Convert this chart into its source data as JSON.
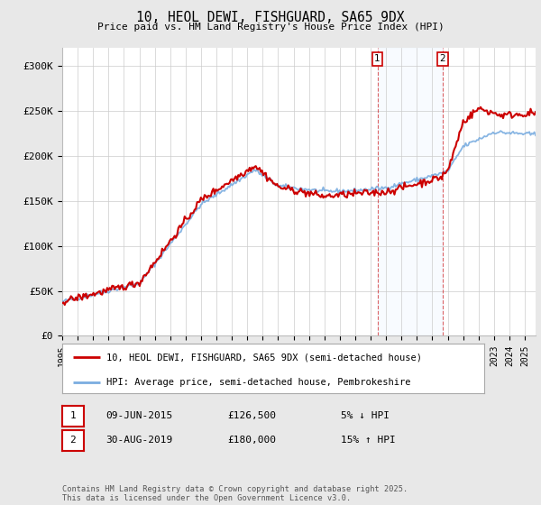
{
  "title": "10, HEOL DEWI, FISHGUARD, SA65 9DX",
  "subtitle": "Price paid vs. HM Land Registry's House Price Index (HPI)",
  "ylabel_ticks": [
    "£0",
    "£50K",
    "£100K",
    "£150K",
    "£200K",
    "£250K",
    "£300K"
  ],
  "ytick_values": [
    0,
    50000,
    100000,
    150000,
    200000,
    250000,
    300000
  ],
  "ylim": [
    0,
    320000
  ],
  "xlim_start": 1995.0,
  "xlim_end": 2025.7,
  "line1_color": "#cc0000",
  "line2_color": "#7aade0",
  "bg_color": "#e8e8e8",
  "plot_bg_color": "#ffffff",
  "grid_color": "#cccccc",
  "marker1_x": 2015.44,
  "marker2_x": 2019.66,
  "legend_line1": "10, HEOL DEWI, FISHGUARD, SA65 9DX (semi-detached house)",
  "legend_line2": "HPI: Average price, semi-detached house, Pembrokeshire",
  "note1_label": "1",
  "note1_date": "09-JUN-2015",
  "note1_price": "£126,500",
  "note1_change": "5% ↓ HPI",
  "note2_label": "2",
  "note2_date": "30-AUG-2019",
  "note2_price": "£180,000",
  "note2_change": "15% ↑ HPI",
  "copyright": "Contains HM Land Registry data © Crown copyright and database right 2025.\nThis data is licensed under the Open Government Licence v3.0."
}
